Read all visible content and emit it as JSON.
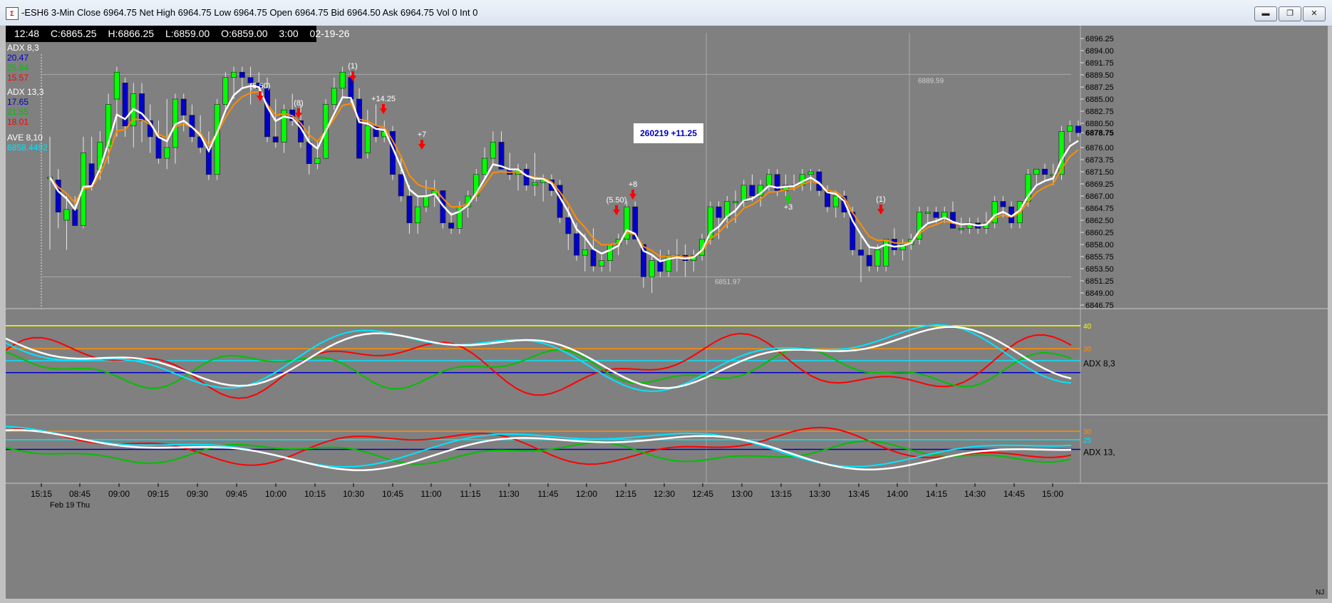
{
  "window": {
    "title": "-ESH6 3-Min Close 6964.75 Net  High 6964.75 Low 6964.75 Open 6964.75 Bid 6964.50 Ask 6964.75 Vol 0 Int 0",
    "minimize_icon": "minimize-icon",
    "maximize_icon": "maximize-icon",
    "close_icon": "close-icon"
  },
  "bar_info": {
    "time": "12:48",
    "close": "C:6865.25",
    "high": "H:6866.25",
    "low": "L:6859.00",
    "open": "O:6859.00",
    "interval": "3:00",
    "date": "02-19-26"
  },
  "legend": {
    "adx1_label": "ADX  8,3",
    "adx1_v1": "20.47",
    "adx1_v2": "25.84",
    "adx1_v3": "15.57",
    "adx2_label": "ADX  13,3",
    "adx2_v1": "17.65",
    "adx2_v2": "21.55",
    "adx2_v3": "18.01",
    "ave_label": "AVE  8,10",
    "ave_value": "6858.4492"
  },
  "colors": {
    "bg": "#808080",
    "up_candle": "#00ff00",
    "down_candle": "#0000cc",
    "orange_ma": "#ff8c00",
    "white_ma": "#ffffff",
    "adx_blue": "#0000cc",
    "adx_green": "#00c000",
    "adx_red": "#ff0000",
    "cyan": "#00e5ff",
    "yellow": "#ffff00"
  },
  "signal_box": "260219   +11.25",
  "annotations": [
    {
      "text": "(5.50)"
    },
    {
      "text": "(8)"
    },
    {
      "text": "(1)"
    },
    {
      "text": "+14.25"
    },
    {
      "text": "+7"
    },
    {
      "text": "(5.50)"
    },
    {
      "text": "+8"
    },
    {
      "text": "+3"
    },
    {
      "text": "(1)"
    }
  ],
  "price_levels": {
    "high_line": "6889.59",
    "low_line": "6851.97"
  },
  "y_axis": [
    "6896.25",
    "6894.00",
    "6891.75",
    "6889.50",
    "6887.25",
    "6885.00",
    "6882.75",
    "6880.50",
    "6878.75",
    "6876.00",
    "6873.75",
    "6871.50",
    "6869.25",
    "6867.00",
    "6864.75",
    "6862.50",
    "6860.25",
    "6858.00",
    "6855.75",
    "6853.50",
    "6851.25",
    "6849.00",
    "6846.75"
  ],
  "current_price": "6878.75",
  "x_axis": [
    "15:15",
    "08:45",
    "09:00",
    "09:15",
    "09:30",
    "09:45",
    "10:00",
    "10:15",
    "10:30",
    "10:45",
    "11:00",
    "11:15",
    "11:30",
    "11:45",
    "12:00",
    "12:15",
    "12:30",
    "12:45",
    "13:00",
    "13:15",
    "13:30",
    "13:45",
    "14:00",
    "14:15",
    "14:30",
    "14:45",
    "15:00"
  ],
  "date_label": "Feb 19 Thu",
  "panel1": {
    "label": "ADX  8,3",
    "lvl40": "40",
    "lvl30": "30"
  },
  "panel2": {
    "label": "ADX  13,",
    "lvl30": "30",
    "lvl25": "25"
  },
  "nj": "NJ",
  "chart_data": {
    "type": "candlestick",
    "ylim": [
      6846.75,
      6896.25
    ],
    "candles": [
      {
        "o": 6870.5,
        "h": 6878,
        "l": 6857,
        "c": 6870.5
      },
      {
        "o": 6870,
        "h": 6872,
        "l": 6861,
        "c": 6864
      },
      {
        "o": 6862.5,
        "h": 6867,
        "l": 6857,
        "c": 6864.5
      },
      {
        "o": 6864.5,
        "h": 6867,
        "l": 6861.5,
        "c": 6861.5
      },
      {
        "o": 6861.5,
        "h": 6878,
        "l": 6861,
        "c": 6875
      },
      {
        "o": 6873,
        "h": 6878,
        "l": 6868,
        "c": 6869
      },
      {
        "o": 6872,
        "h": 6879,
        "l": 6870,
        "c": 6877
      },
      {
        "o": 6876,
        "h": 6886,
        "l": 6873,
        "c": 6884
      },
      {
        "o": 6885,
        "h": 6891,
        "l": 6878,
        "c": 6890
      },
      {
        "o": 6888,
        "h": 6889,
        "l": 6878,
        "c": 6880
      },
      {
        "o": 6880,
        "h": 6888,
        "l": 6876,
        "c": 6886
      },
      {
        "o": 6886,
        "h": 6888,
        "l": 6877,
        "c": 6881
      },
      {
        "o": 6881,
        "h": 6884,
        "l": 6875,
        "c": 6878
      },
      {
        "o": 6878,
        "h": 6881,
        "l": 6873,
        "c": 6874
      },
      {
        "o": 6874,
        "h": 6885,
        "l": 6872,
        "c": 6876
      },
      {
        "o": 6876,
        "h": 6886,
        "l": 6873,
        "c": 6885
      },
      {
        "o": 6885,
        "h": 6886,
        "l": 6879,
        "c": 6882
      },
      {
        "o": 6882,
        "h": 6884,
        "l": 6877,
        "c": 6878
      },
      {
        "o": 6878,
        "h": 6882,
        "l": 6875,
        "c": 6876
      },
      {
        "o": 6876,
        "h": 6879,
        "l": 6870,
        "c": 6871
      },
      {
        "o": 6871,
        "h": 6885,
        "l": 6870,
        "c": 6884
      },
      {
        "o": 6884,
        "h": 6890,
        "l": 6883,
        "c": 6889
      },
      {
        "o": 6889,
        "h": 6891,
        "l": 6885,
        "c": 6890
      },
      {
        "o": 6890,
        "h": 6891,
        "l": 6887,
        "c": 6889
      },
      {
        "o": 6889,
        "h": 6891,
        "l": 6884,
        "c": 6888
      },
      {
        "o": 6888,
        "h": 6890,
        "l": 6885,
        "c": 6887
      },
      {
        "o": 6887,
        "h": 6889,
        "l": 6877,
        "c": 6878
      },
      {
        "o": 6878,
        "h": 6885,
        "l": 6876,
        "c": 6877
      },
      {
        "o": 6877,
        "h": 6884,
        "l": 6875,
        "c": 6883
      },
      {
        "o": 6883,
        "h": 6886,
        "l": 6880,
        "c": 6881
      },
      {
        "o": 6881,
        "h": 6884,
        "l": 6876,
        "c": 6877
      },
      {
        "o": 6877,
        "h": 6880,
        "l": 6871,
        "c": 6873
      },
      {
        "o": 6873,
        "h": 6877,
        "l": 6872,
        "c": 6874
      },
      {
        "o": 6874,
        "h": 6885,
        "l": 6874,
        "c": 6884
      },
      {
        "o": 6884,
        "h": 6889,
        "l": 6883,
        "c": 6887
      },
      {
        "o": 6887,
        "h": 6891,
        "l": 6885,
        "c": 6890
      },
      {
        "o": 6889,
        "h": 6890,
        "l": 6884,
        "c": 6885
      },
      {
        "o": 6885,
        "h": 6887,
        "l": 6874,
        "c": 6874
      },
      {
        "o": 6875,
        "h": 6883,
        "l": 6874,
        "c": 6880
      },
      {
        "o": 6880,
        "h": 6884,
        "l": 6877,
        "c": 6878
      },
      {
        "o": 6878,
        "h": 6881,
        "l": 6877,
        "c": 6879
      },
      {
        "o": 6879,
        "h": 6880,
        "l": 6870,
        "c": 6871
      },
      {
        "o": 6871,
        "h": 6874,
        "l": 6866,
        "c": 6867
      },
      {
        "o": 6867,
        "h": 6869,
        "l": 6860,
        "c": 6862
      },
      {
        "o": 6862,
        "h": 6867,
        "l": 6860,
        "c": 6865
      },
      {
        "o": 6865,
        "h": 6870,
        "l": 6864,
        "c": 6867
      },
      {
        "o": 6867,
        "h": 6870,
        "l": 6865,
        "c": 6868
      },
      {
        "o": 6868,
        "h": 6868,
        "l": 6861,
        "c": 6862
      },
      {
        "o": 6862,
        "h": 6864,
        "l": 6860,
        "c": 6861
      },
      {
        "o": 6861,
        "h": 6866,
        "l": 6860,
        "c": 6865
      },
      {
        "o": 6865,
        "h": 6868,
        "l": 6863,
        "c": 6867
      },
      {
        "o": 6867,
        "h": 6872,
        "l": 6866,
        "c": 6871
      },
      {
        "o": 6871,
        "h": 6876,
        "l": 6870,
        "c": 6874
      },
      {
        "o": 6874,
        "h": 6879,
        "l": 6873,
        "c": 6877
      },
      {
        "o": 6877,
        "h": 6879,
        "l": 6872,
        "c": 6872
      },
      {
        "o": 6872,
        "h": 6875,
        "l": 6870,
        "c": 6871
      },
      {
        "o": 6871,
        "h": 6873,
        "l": 6868,
        "c": 6872
      },
      {
        "o": 6872,
        "h": 6873,
        "l": 6868,
        "c": 6869
      },
      {
        "o": 6869,
        "h": 6875,
        "l": 6867,
        "c": 6869.5
      },
      {
        "o": 6869.5,
        "h": 6871,
        "l": 6866,
        "c": 6870
      },
      {
        "o": 6870,
        "h": 6871,
        "l": 6867,
        "c": 6868
      },
      {
        "o": 6869,
        "h": 6870,
        "l": 6862,
        "c": 6863
      },
      {
        "o": 6863,
        "h": 6865,
        "l": 6857,
        "c": 6860
      },
      {
        "o": 6860,
        "h": 6862,
        "l": 6855,
        "c": 6856
      },
      {
        "o": 6856,
        "h": 6860,
        "l": 6853,
        "c": 6857
      },
      {
        "o": 6857,
        "h": 6861,
        "l": 6853,
        "c": 6854
      },
      {
        "o": 6854,
        "h": 6856,
        "l": 6853,
        "c": 6855
      },
      {
        "o": 6855,
        "h": 6858,
        "l": 6853,
        "c": 6858
      },
      {
        "o": 6858,
        "h": 6860,
        "l": 6856,
        "c": 6859
      },
      {
        "o": 6859,
        "h": 6866,
        "l": 6858,
        "c": 6865
      },
      {
        "o": 6865,
        "h": 6866,
        "l": 6859,
        "c": 6859
      },
      {
        "o": 6858,
        "h": 6858,
        "l": 6850,
        "c": 6852
      },
      {
        "o": 6852,
        "h": 6856,
        "l": 6849,
        "c": 6855
      },
      {
        "o": 6855,
        "h": 6857,
        "l": 6852,
        "c": 6853
      },
      {
        "o": 6853,
        "h": 6857,
        "l": 6852,
        "c": 6856
      },
      {
        "o": 6856,
        "h": 6859,
        "l": 6853,
        "c": 6856
      },
      {
        "o": 6856,
        "h": 6858,
        "l": 6852,
        "c": 6855
      },
      {
        "o": 6855,
        "h": 6857,
        "l": 6853,
        "c": 6856
      },
      {
        "o": 6856,
        "h": 6860,
        "l": 6855,
        "c": 6859
      },
      {
        "o": 6859,
        "h": 6866,
        "l": 6858,
        "c": 6865
      },
      {
        "o": 6865,
        "h": 6866,
        "l": 6859,
        "c": 6863
      },
      {
        "o": 6863,
        "h": 6867,
        "l": 6861,
        "c": 6866
      },
      {
        "o": 6866,
        "h": 6868,
        "l": 6862,
        "c": 6866
      },
      {
        "o": 6866,
        "h": 6870,
        "l": 6865,
        "c": 6869
      },
      {
        "o": 6869,
        "h": 6871,
        "l": 6866,
        "c": 6867
      },
      {
        "o": 6867,
        "h": 6870,
        "l": 6865,
        "c": 6869
      },
      {
        "o": 6869,
        "h": 6872,
        "l": 6868,
        "c": 6871
      },
      {
        "o": 6871,
        "h": 6872,
        "l": 6867,
        "c": 6868
      },
      {
        "o": 6868,
        "h": 6871,
        "l": 6867,
        "c": 6869
      },
      {
        "o": 6869,
        "h": 6871,
        "l": 6868,
        "c": 6869
      },
      {
        "o": 6869,
        "h": 6872,
        "l": 6868,
        "c": 6871
      },
      {
        "o": 6871,
        "h": 6872,
        "l": 6868,
        "c": 6871.5
      },
      {
        "o": 6871.5,
        "h": 6872,
        "l": 6867,
        "c": 6868
      },
      {
        "o": 6868,
        "h": 6869,
        "l": 6864,
        "c": 6865
      },
      {
        "o": 6865,
        "h": 6868,
        "l": 6863,
        "c": 6867
      },
      {
        "o": 6867,
        "h": 6868,
        "l": 6863,
        "c": 6864
      },
      {
        "o": 6864,
        "h": 6865,
        "l": 6856,
        "c": 6857
      },
      {
        "o": 6857,
        "h": 6860,
        "l": 6851,
        "c": 6856
      },
      {
        "o": 6856,
        "h": 6858,
        "l": 6853,
        "c": 6854
      },
      {
        "o": 6854,
        "h": 6858,
        "l": 6853,
        "c": 6857
      },
      {
        "o": 6854,
        "h": 6859,
        "l": 6853,
        "c": 6859
      },
      {
        "o": 6859,
        "h": 6861,
        "l": 6856,
        "c": 6857
      },
      {
        "o": 6857,
        "h": 6859,
        "l": 6855,
        "c": 6858
      },
      {
        "o": 6858,
        "h": 6860,
        "l": 6857,
        "c": 6859
      },
      {
        "o": 6859,
        "h": 6865,
        "l": 6858,
        "c": 6864
      },
      {
        "o": 6864,
        "h": 6865,
        "l": 6862,
        "c": 6864
      },
      {
        "o": 6864,
        "h": 6865,
        "l": 6862,
        "c": 6863
      },
      {
        "o": 6863,
        "h": 6865,
        "l": 6862,
        "c": 6864
      },
      {
        "o": 6864,
        "h": 6866,
        "l": 6861,
        "c": 6861
      },
      {
        "o": 6861,
        "h": 6863,
        "l": 6860,
        "c": 6861
      },
      {
        "o": 6861,
        "h": 6863,
        "l": 6860,
        "c": 6862
      },
      {
        "o": 6862,
        "h": 6863,
        "l": 6860,
        "c": 6861
      },
      {
        "o": 6861,
        "h": 6864,
        "l": 6860,
        "c": 6862
      },
      {
        "o": 6862,
        "h": 6867,
        "l": 6861,
        "c": 6866
      },
      {
        "o": 6866,
        "h": 6867,
        "l": 6863,
        "c": 6865
      },
      {
        "o": 6865,
        "h": 6866,
        "l": 6861,
        "c": 6862
      },
      {
        "o": 6862,
        "h": 6866,
        "l": 6861,
        "c": 6866
      },
      {
        "o": 6866,
        "h": 6872,
        "l": 6865,
        "c": 6871
      },
      {
        "o": 6871,
        "h": 6872,
        "l": 6869,
        "c": 6872
      },
      {
        "o": 6872,
        "h": 6873,
        "l": 6870,
        "c": 6871
      },
      {
        "o": 6871,
        "h": 6873,
        "l": 6869,
        "c": 6871
      },
      {
        "o": 6871,
        "h": 6880,
        "l": 6870,
        "c": 6879
      },
      {
        "o": 6879,
        "h": 6881,
        "l": 6877,
        "c": 6880
      },
      {
        "o": 6880,
        "h": 6881,
        "l": 6878,
        "c": 6878.75
      }
    ]
  }
}
